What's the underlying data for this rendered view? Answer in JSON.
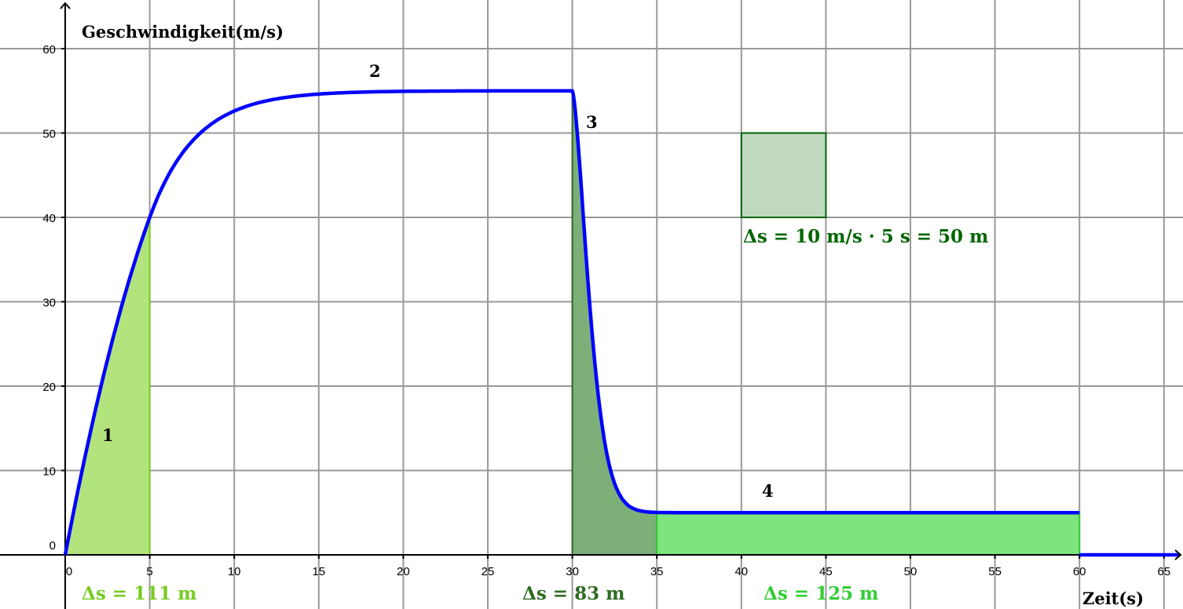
{
  "chart_data": {
    "type": "line",
    "xlabel": "Zeit(s)",
    "ylabel": "Geschwindigkeit(m/s)",
    "xlim": [
      -0.5,
      66
    ],
    "ylim": [
      -6.5,
      65
    ],
    "grid": true,
    "x_ticks": [
      0,
      5,
      10,
      15,
      20,
      25,
      30,
      35,
      40,
      45,
      50,
      55,
      60,
      65
    ],
    "y_ticks": [
      0,
      10,
      20,
      30,
      40,
      50,
      60
    ],
    "series": [
      {
        "color": "#0000ff",
        "points": [
          [
            0,
            0
          ],
          [
            1,
            10
          ],
          [
            2,
            19
          ],
          [
            3,
            27
          ],
          [
            5,
            40
          ],
          [
            10,
            52.5
          ],
          [
            15,
            54.6
          ],
          [
            20,
            54.9
          ],
          [
            30,
            55
          ],
          [
            30.5,
            44
          ],
          [
            31.5,
            19.5
          ],
          [
            32.2,
            10.5
          ],
          [
            33,
            7
          ],
          [
            35,
            5.2
          ],
          [
            40,
            5
          ],
          [
            60,
            5
          ],
          [
            60,
            0
          ],
          [
            66,
            0
          ]
        ]
      }
    ],
    "segment_labels": [
      "1",
      "2",
      "3",
      "4"
    ],
    "areas": [
      {
        "from": 0,
        "to": 5,
        "label": "Δs = 111 m",
        "color": "#77cc22",
        "fill": "#b3e37c"
      },
      {
        "from": 30,
        "to": 35,
        "label": "Δs = 83 m",
        "color": "#2e6b22",
        "fill": "#7daf78"
      },
      {
        "from": 35,
        "to": 60,
        "label": "Δs = 125 m",
        "color": "#33cc33",
        "fill": "#7ee47e"
      }
    ],
    "example_rectangle": {
      "x": [
        40,
        45
      ],
      "y": [
        40,
        50
      ],
      "label": "Δs = 10 m/s · 5 s = 50 m",
      "color": "#006600",
      "fill": "#c1d9c1"
    }
  }
}
